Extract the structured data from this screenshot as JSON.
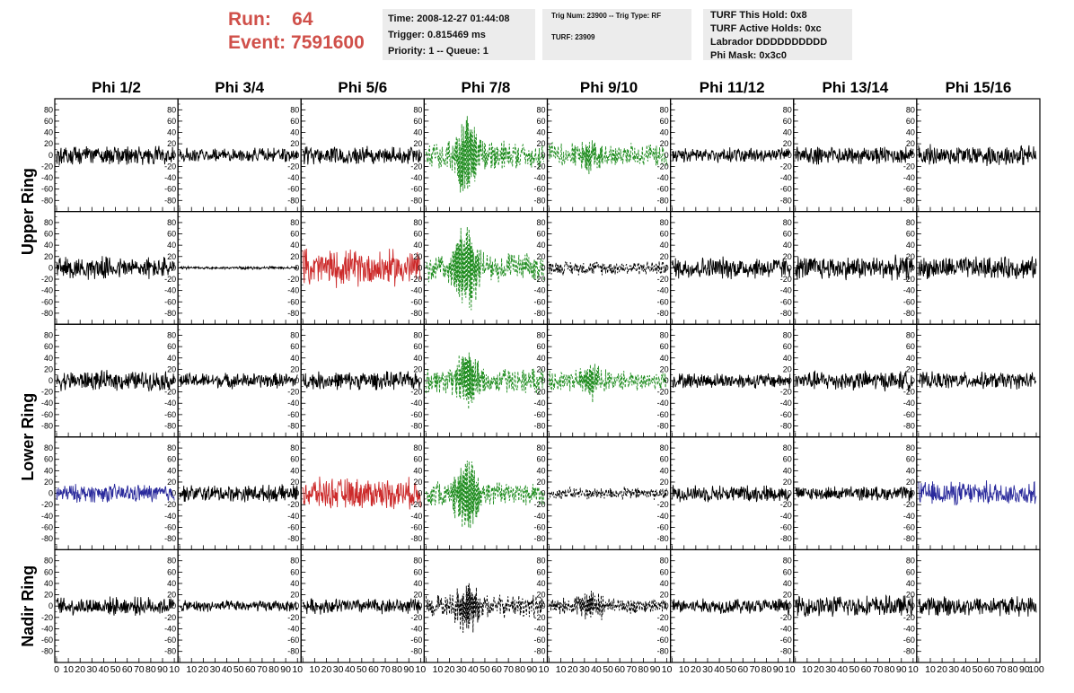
{
  "header": {
    "run_label": "Run:",
    "run_value": "64",
    "event_label": "Event:",
    "event_value": "7591600"
  },
  "info_box_1": {
    "time": "Time: 2008-12-27 01:44:08",
    "trigger": "Trigger: 0.815469 ms",
    "priority": "Priority: 1 -- Queue: 1"
  },
  "info_box_2": {
    "trig": "Trig Num: 23900 -- Trig Type: RF",
    "turf": "TURF: 23909"
  },
  "info_box_3": {
    "this_hold": "TURF This Hold: 0x8",
    "active_holds": "TURF Active Holds: 0xc",
    "labrador": "Labrador DDDDDDDDDD",
    "phi_mask": "Phi Mask: 0x3c0"
  },
  "chart_data": {
    "type": "line",
    "columns": [
      "Phi 1/2",
      "Phi 3/4",
      "Phi 5/6",
      "Phi 7/8",
      "Phi 9/10",
      "Phi 11/12",
      "Phi 13/14",
      "Phi 15/16"
    ],
    "ring_labels": [
      {
        "label": "Upper Ring",
        "rows": [
          0,
          1
        ]
      },
      {
        "label": "Lower Ring",
        "rows": [
          2,
          3
        ]
      },
      {
        "label": "Nadir Ring",
        "rows": [
          4
        ]
      }
    ],
    "xlim": [
      0,
      100
    ],
    "ylim": [
      -90,
      90
    ],
    "x_ticks": [
      0,
      10,
      20,
      30,
      40,
      50,
      60,
      70,
      80,
      90,
      100
    ],
    "x_tick_labels_first": [
      "0",
      "10",
      "20",
      "30",
      "40",
      "50",
      "60",
      "70",
      "80",
      "90",
      "10"
    ],
    "x_tick_labels": [
      "10",
      "20",
      "30",
      "40",
      "50",
      "60",
      "70",
      "80",
      "90",
      "10"
    ],
    "x_tick_labels_last": [
      "10",
      "20",
      "30",
      "40",
      "50",
      "60",
      "70",
      "80",
      "90",
      "100"
    ],
    "y_tick_labels": [
      "80",
      "60",
      "40",
      "20",
      "0",
      "-20",
      "-40",
      "-60",
      "-80"
    ],
    "colors": {
      "default": "#000000",
      "green": "#1e8c1e",
      "red": "#cc2a2a",
      "blue": "#2a2a9c"
    },
    "panels": [
      [
        {
          "color": "default",
          "dashed": false,
          "amp": 14,
          "spike": 0
        },
        {
          "color": "default",
          "dashed": false,
          "amp": 10,
          "spike": 0
        },
        {
          "color": "default",
          "dashed": false,
          "amp": 14,
          "spike": 0
        },
        {
          "color": "green",
          "dashed": true,
          "amp": 20,
          "spike": 60
        },
        {
          "color": "green",
          "dashed": true,
          "amp": 16,
          "spike": 20
        },
        {
          "color": "default",
          "dashed": false,
          "amp": 10,
          "spike": 0
        },
        {
          "color": "default",
          "dashed": false,
          "amp": 13,
          "spike": 0
        },
        {
          "color": "default",
          "dashed": false,
          "amp": 15,
          "spike": 0
        }
      ],
      [
        {
          "color": "default",
          "dashed": false,
          "amp": 16,
          "spike": 0
        },
        {
          "color": "default",
          "dashed": false,
          "amp": 2,
          "spike": 0
        },
        {
          "color": "red",
          "dashed": false,
          "amp": 26,
          "spike": 0
        },
        {
          "color": "green",
          "dashed": true,
          "amp": 20,
          "spike": 70
        },
        {
          "color": "default",
          "dashed": true,
          "amp": 10,
          "spike": 0
        },
        {
          "color": "default",
          "dashed": false,
          "amp": 16,
          "spike": 0
        },
        {
          "color": "default",
          "dashed": false,
          "amp": 17,
          "spike": 0
        },
        {
          "color": "default",
          "dashed": false,
          "amp": 16,
          "spike": 0
        }
      ],
      [
        {
          "color": "default",
          "dashed": false,
          "amp": 14,
          "spike": 0
        },
        {
          "color": "default",
          "dashed": false,
          "amp": 11,
          "spike": 0
        },
        {
          "color": "default",
          "dashed": false,
          "amp": 13,
          "spike": 0
        },
        {
          "color": "green",
          "dashed": true,
          "amp": 18,
          "spike": 45
        },
        {
          "color": "green",
          "dashed": true,
          "amp": 14,
          "spike": 25
        },
        {
          "color": "default",
          "dashed": false,
          "amp": 11,
          "spike": 0
        },
        {
          "color": "default",
          "dashed": false,
          "amp": 14,
          "spike": 0
        },
        {
          "color": "default",
          "dashed": false,
          "amp": 12,
          "spike": 0
        }
      ],
      [
        {
          "color": "blue",
          "dashed": false,
          "amp": 13,
          "spike": 0
        },
        {
          "color": "default",
          "dashed": false,
          "amp": 12,
          "spike": 0
        },
        {
          "color": "red",
          "dashed": false,
          "amp": 22,
          "spike": 0
        },
        {
          "color": "green",
          "dashed": true,
          "amp": 18,
          "spike": 65
        },
        {
          "color": "default",
          "dashed": true,
          "amp": 9,
          "spike": 0
        },
        {
          "color": "default",
          "dashed": false,
          "amp": 12,
          "spike": 0
        },
        {
          "color": "default",
          "dashed": false,
          "amp": 10,
          "spike": 0
        },
        {
          "color": "blue",
          "dashed": false,
          "amp": 17,
          "spike": 0
        }
      ],
      [
        {
          "color": "default",
          "dashed": false,
          "amp": 13,
          "spike": 0
        },
        {
          "color": "default",
          "dashed": false,
          "amp": 8,
          "spike": 0
        },
        {
          "color": "default",
          "dashed": false,
          "amp": 11,
          "spike": 0
        },
        {
          "color": "default",
          "dashed": true,
          "amp": 16,
          "spike": 40
        },
        {
          "color": "default",
          "dashed": true,
          "amp": 12,
          "spike": 20
        },
        {
          "color": "default",
          "dashed": false,
          "amp": 11,
          "spike": 0
        },
        {
          "color": "default",
          "dashed": false,
          "amp": 15,
          "spike": 0
        },
        {
          "color": "default",
          "dashed": false,
          "amp": 14,
          "spike": 0
        }
      ]
    ]
  }
}
